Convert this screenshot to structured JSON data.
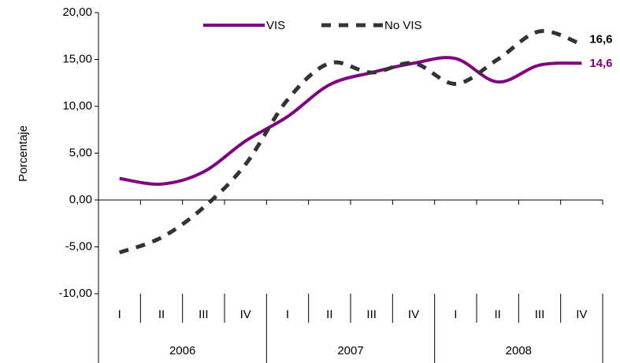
{
  "chart_data": {
    "type": "line",
    "y_label": "Porcentaje",
    "categories": [
      "I",
      "II",
      "III",
      "IV",
      "I",
      "II",
      "III",
      "IV",
      "I",
      "II",
      "III",
      "IV"
    ],
    "years": [
      "2006",
      "2007",
      "2008"
    ],
    "series": [
      {
        "name": "VIS",
        "color": "#800080",
        "dash": false,
        "values": [
          2.3,
          1.7,
          3.0,
          6.3,
          8.9,
          12.3,
          13.6,
          14.6,
          15.1,
          12.6,
          14.4,
          14.6
        ],
        "value_labels": [
          null,
          null,
          null,
          null,
          null,
          null,
          null,
          null,
          null,
          null,
          null,
          "14,6"
        ]
      },
      {
        "name": "No VIS",
        "color": "#333333",
        "dash": true,
        "values": [
          -5.6,
          -4.0,
          -0.8,
          3.8,
          10.7,
          14.6,
          13.6,
          14.6,
          12.4,
          15.0,
          18.0,
          16.6
        ],
        "value_labels": [
          null,
          null,
          null,
          null,
          null,
          null,
          null,
          null,
          null,
          null,
          null,
          "16,6"
        ]
      }
    ],
    "ylim": [
      -10,
      20
    ],
    "yticks": [
      {
        "value": -10,
        "label": "-10,00"
      },
      {
        "value": -5,
        "label": "-5,00"
      },
      {
        "value": 0,
        "label": "0,00"
      },
      {
        "value": 5,
        "label": "5,00"
      },
      {
        "value": 10,
        "label": "10,00"
      },
      {
        "value": 15,
        "label": "15,00"
      },
      {
        "value": 20,
        "label": "20,00"
      }
    ],
    "legend": "top"
  }
}
